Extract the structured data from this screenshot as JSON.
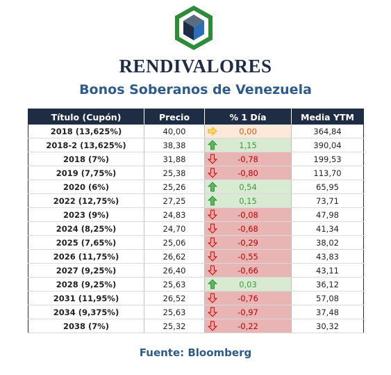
{
  "header": {
    "brand": "RENDIVALORES",
    "subtitle": "Bonos Soberanos de Venezuela"
  },
  "table": {
    "columns": [
      "Título (Cupón)",
      "Precio",
      "% 1 Día",
      "Media YTM"
    ],
    "rows": [
      {
        "title": "2018 (13,625%)",
        "price": "40,00",
        "change": "0,00",
        "trend": "flat",
        "ytm": "364,84"
      },
      {
        "title": "2018-2 (13,625%)",
        "price": "38,38",
        "change": "1,15",
        "trend": "up",
        "ytm": "390,04"
      },
      {
        "title": "2018 (7%)",
        "price": "31,88",
        "change": "-0,78",
        "trend": "down",
        "ytm": "199,53"
      },
      {
        "title": "2019 (7,75%)",
        "price": "25,38",
        "change": "-0,80",
        "trend": "down",
        "ytm": "113,70"
      },
      {
        "title": "2020 (6%)",
        "price": "25,26",
        "change": "0,54",
        "trend": "up",
        "ytm": "65,95"
      },
      {
        "title": "2022 (12,75%)",
        "price": "27,25",
        "change": "0,15",
        "trend": "up",
        "ytm": "73,71"
      },
      {
        "title": "2023 (9%)",
        "price": "24,83",
        "change": "-0,08",
        "trend": "down",
        "ytm": "47,98"
      },
      {
        "title": "2024 (8,25%)",
        "price": "24,70",
        "change": "-0,68",
        "trend": "down",
        "ytm": "41,34"
      },
      {
        "title": "2025 (7,65%)",
        "price": "25,06",
        "change": "-0,29",
        "trend": "down",
        "ytm": "38,02"
      },
      {
        "title": "2026 (11,75%)",
        "price": "26,62",
        "change": "-0,55",
        "trend": "down",
        "ytm": "43,83"
      },
      {
        "title": "2027 (9,25%)",
        "price": "26,40",
        "change": "-0,66",
        "trend": "down",
        "ytm": "43,11"
      },
      {
        "title": "2028 (9,25%)",
        "price": "25,63",
        "change": "0,03",
        "trend": "up",
        "ytm": "36,12"
      },
      {
        "title": "2031 (11,95%)",
        "price": "26,52",
        "change": "-0,76",
        "trend": "down",
        "ytm": "57,08"
      },
      {
        "title": "2034 (9,375%)",
        "price": "25,63",
        "change": "-0,97",
        "trend": "down",
        "ytm": "37,48"
      },
      {
        "title": "2038 (7%)",
        "price": "25,32",
        "change": "-0,22",
        "trend": "down",
        "ytm": "30,32"
      }
    ]
  },
  "footer": {
    "source": "Fuente: Bloomberg"
  },
  "colors": {
    "header_bg": "#1f2d44",
    "subtitle": "#2e5b8a",
    "up_bg": "#d9ead3",
    "down_bg": "#e8b4b4",
    "flat_bg": "#fde9d9",
    "up_arrow": "#3a9a3a",
    "down_arrow": "#c00000",
    "flat_arrow": "#f4b400"
  }
}
